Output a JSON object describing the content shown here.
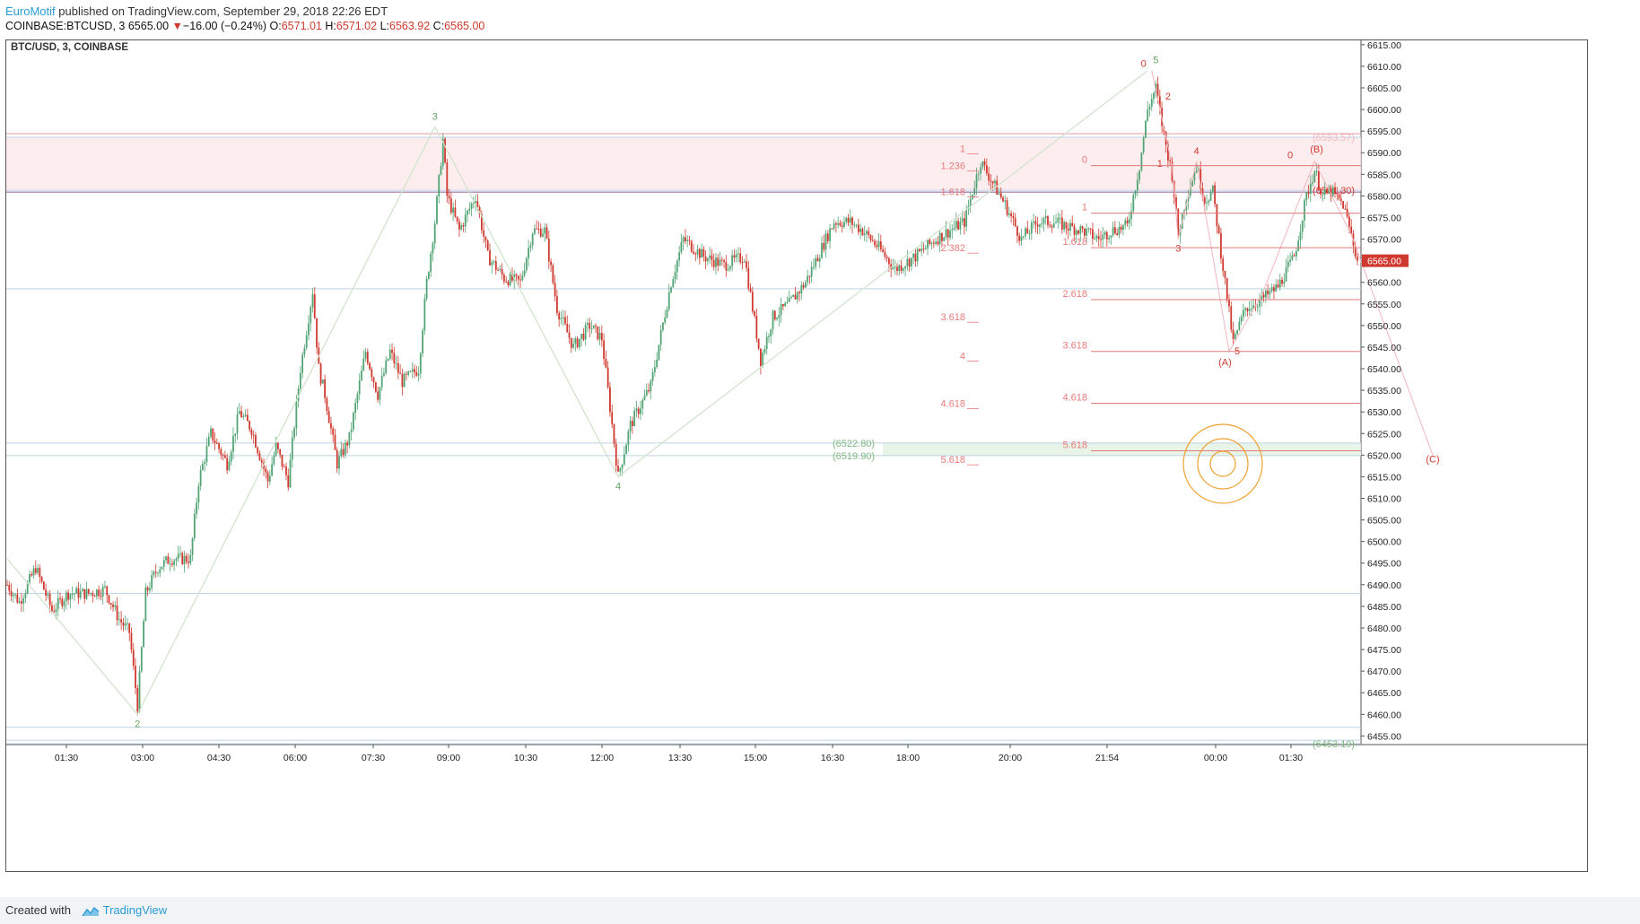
{
  "header": {
    "author": "EuroMotif",
    "published_text": " published on TradingView.com, September 29, 2018 22:26 EDT",
    "symbol": "COINBASE:BTCUSD, 3",
    "last": "6565.00",
    "change_arrow": "▼",
    "change": "−16.00 (−0.24%)",
    "o_label": "O:",
    "o": "6571.01",
    "h_label": "H:",
    "h": "6571.02",
    "l_label": "L:",
    "l": "6563.92",
    "c_label": "C:",
    "c": "6565.00"
  },
  "footer": {
    "created_with": "Created with",
    "brand": "TradingView"
  },
  "colors": {
    "up": "#53a475",
    "down": "#d0392f",
    "brand": "#2a9bd4",
    "wave_green": "#5fa85f",
    "wave_red": "#d0392f",
    "fib_pink": "#e87a7a",
    "target_orange": "#f0a030"
  },
  "chart_data": {
    "type": "candlestick",
    "title": "BTC/USD, 3, COINBASE",
    "ylim": [
      6453,
      6616
    ],
    "ytick_labels": [
      "6615.00",
      "6610.00",
      "6605.00",
      "6600.00",
      "6595.00",
      "6590.00",
      "6585.00",
      "6580.00",
      "6575.00",
      "6570.00",
      "6565.00",
      "6560.00",
      "6555.00",
      "6550.00",
      "6545.00",
      "6540.00",
      "6535.00",
      "6530.00",
      "6525.00",
      "6520.00",
      "6515.00",
      "6510.00",
      "6505.00",
      "6500.00",
      "6495.00",
      "6490.00",
      "6485.00",
      "6480.00",
      "6475.00",
      "6470.00",
      "6465.00",
      "6460.00",
      "6455.00"
    ],
    "xtick_labels": [
      "01:30",
      "03:00",
      "04:30",
      "06:00",
      "07:30",
      "09:00",
      "10:30",
      "12:00",
      "13:30",
      "15:00",
      "16:30",
      "18:00",
      "20:00",
      "21:54",
      "00:00",
      "01:30"
    ],
    "grid": false,
    "last_price": 6565.0,
    "price_path_knots": [
      [
        0,
        6490
      ],
      [
        6,
        6486
      ],
      [
        14,
        6494
      ],
      [
        22,
        6484
      ],
      [
        30,
        6488
      ],
      [
        40,
        6488
      ],
      [
        48,
        6489
      ],
      [
        55,
        6482
      ],
      [
        60,
        6479
      ],
      [
        64,
        6462
      ],
      [
        68,
        6488
      ],
      [
        74,
        6494
      ],
      [
        80,
        6496
      ],
      [
        90,
        6496
      ],
      [
        94,
        6514
      ],
      [
        100,
        6525
      ],
      [
        108,
        6518
      ],
      [
        114,
        6530
      ],
      [
        120,
        6526
      ],
      [
        128,
        6514
      ],
      [
        132,
        6522
      ],
      [
        138,
        6514
      ],
      [
        144,
        6540
      ],
      [
        150,
        6558
      ],
      [
        153,
        6540
      ],
      [
        156,
        6534
      ],
      [
        162,
        6518
      ],
      [
        168,
        6524
      ],
      [
        176,
        6544
      ],
      [
        182,
        6534
      ],
      [
        188,
        6544
      ],
      [
        194,
        6537
      ],
      [
        202,
        6540
      ],
      [
        206,
        6560
      ],
      [
        210,
        6574
      ],
      [
        214,
        6593
      ],
      [
        216,
        6580
      ],
      [
        222,
        6572
      ],
      [
        230,
        6580
      ],
      [
        236,
        6566
      ],
      [
        244,
        6561
      ],
      [
        252,
        6560
      ],
      [
        258,
        6572
      ],
      [
        264,
        6572
      ],
      [
        270,
        6554
      ],
      [
        278,
        6545
      ],
      [
        286,
        6550
      ],
      [
        292,
        6547
      ],
      [
        300,
        6515
      ],
      [
        306,
        6527
      ],
      [
        316,
        6536
      ],
      [
        326,
        6560
      ],
      [
        332,
        6570
      ],
      [
        342,
        6566
      ],
      [
        352,
        6564
      ],
      [
        362,
        6566
      ],
      [
        370,
        6542
      ],
      [
        376,
        6552
      ],
      [
        384,
        6555
      ],
      [
        392,
        6560
      ],
      [
        400,
        6568
      ],
      [
        406,
        6574
      ],
      [
        414,
        6574
      ],
      [
        420,
        6572
      ],
      [
        428,
        6568
      ],
      [
        436,
        6563
      ],
      [
        446,
        6566
      ],
      [
        456,
        6570
      ],
      [
        470,
        6574
      ],
      [
        478,
        6588
      ],
      [
        484,
        6583
      ],
      [
        490,
        6578
      ],
      [
        498,
        6570
      ],
      [
        506,
        6574
      ],
      [
        514,
        6574
      ],
      [
        520,
        6573
      ],
      [
        528,
        6572
      ],
      [
        536,
        6570
      ],
      [
        542,
        6572
      ],
      [
        550,
        6573
      ],
      [
        556,
        6587
      ],
      [
        560,
        6600
      ],
      [
        564,
        6605
      ],
      [
        568,
        6594
      ],
      [
        572,
        6585
      ],
      [
        575,
        6571
      ],
      [
        579,
        6580
      ],
      [
        584,
        6587
      ],
      [
        588,
        6579
      ],
      [
        592,
        6581
      ],
      [
        598,
        6560
      ],
      [
        602,
        6546
      ],
      [
        608,
        6554
      ],
      [
        616,
        6556
      ],
      [
        624,
        6559
      ],
      [
        632,
        6566
      ],
      [
        638,
        6580
      ],
      [
        642,
        6586
      ],
      [
        646,
        6580
      ],
      [
        650,
        6581
      ],
      [
        656,
        6578
      ],
      [
        660,
        6571
      ],
      [
        663,
        6565
      ]
    ],
    "waves": [
      {
        "label": "2",
        "price": 6460,
        "color": "green"
      },
      {
        "label": "3",
        "price": 6596,
        "color": "green"
      },
      {
        "label": "4",
        "price": 6515,
        "color": "green"
      },
      {
        "label": "5",
        "price": 6609,
        "color": "green"
      },
      {
        "label": "0",
        "price": 6609,
        "color": "red"
      },
      {
        "label": "2",
        "price": 6604,
        "color": "red"
      },
      {
        "label": "1",
        "price": 6588,
        "color": "red"
      },
      {
        "label": "3",
        "price": 6570,
        "color": "red"
      },
      {
        "label": "4",
        "price": 6588,
        "color": "red"
      },
      {
        "label": "(A)",
        "price": 6544,
        "color": "red"
      },
      {
        "label": "5",
        "price": 6545,
        "color": "red"
      },
      {
        "label": "0",
        "price": 6587,
        "color": "red"
      },
      {
        "label": "(B)",
        "price": 6588,
        "color": "red"
      },
      {
        "label": "(C)",
        "price": 6520,
        "color": "red"
      }
    ],
    "fib_left": [
      {
        "label": "1",
        "price": 6591
      },
      {
        "label": "1.236",
        "price": 6587
      },
      {
        "label": "1.618",
        "price": 6581
      },
      {
        "label": "2.382",
        "price": 6568
      },
      {
        "label": "3.618",
        "price": 6552
      },
      {
        "label": "4",
        "price": 6543
      },
      {
        "label": "4.618",
        "price": 6532
      },
      {
        "label": "5.618",
        "price": 6519
      }
    ],
    "fib_right": [
      {
        "label": "0",
        "price": 6587
      },
      {
        "label": "1",
        "price": 6576
      },
      {
        "label": "1.618",
        "price": 6568
      },
      {
        "label": "2.618",
        "price": 6556
      },
      {
        "label": "3.618",
        "price": 6544
      },
      {
        "label": "4.618",
        "price": 6532
      },
      {
        "label": "5.618",
        "price": 6521
      }
    ],
    "levels": [
      {
        "label": "(6593.57)",
        "price": 6593.57,
        "color": "pink"
      },
      {
        "label": "(6581.30)",
        "price": 6581.3,
        "color": "red"
      },
      {
        "label": "(6522.80)",
        "price": 6522.8,
        "color": "green"
      },
      {
        "label": "(6519.90)",
        "price": 6519.9,
        "color": "green"
      },
      {
        "label": "(6453.19)",
        "price": 6453.19,
        "color": "green"
      }
    ],
    "resistance_zone": [
      6581.3,
      6593.57
    ],
    "support_zone": [
      6519.9,
      6522.8
    ]
  }
}
